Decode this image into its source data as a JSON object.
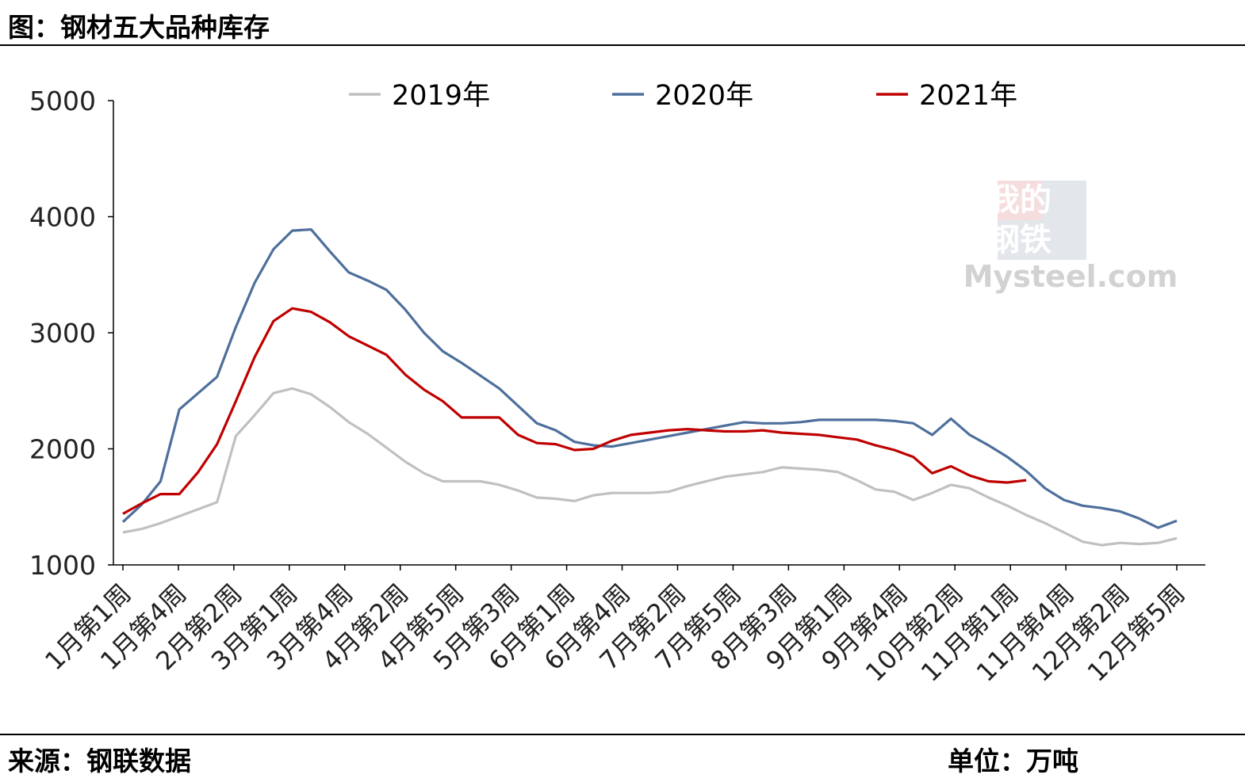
{
  "header": {
    "title": "图：钢材五大品种库存"
  },
  "footer": {
    "source": "来源：钢联数据",
    "unit": "单位：万吨"
  },
  "watermark": {
    "line1": "我的",
    "line2": "钢铁",
    "line3": "Mysteel.com"
  },
  "chart_data": {
    "type": "line",
    "title": "",
    "xlabel": "",
    "ylabel": "",
    "ylim": [
      1000,
      5000
    ],
    "yticks": [
      1000,
      2000,
      3000,
      4000,
      5000
    ],
    "legend_position": "top",
    "grid": false,
    "x_tick_labels": [
      "1月第1周",
      "1月第4周",
      "2月第2周",
      "3月第1周",
      "3月第4周",
      "4月第2周",
      "4月第5周",
      "5月第3周",
      "6月第1周",
      "6月第4周",
      "7月第2周",
      "7月第5周",
      "8月第3周",
      "9月第1周",
      "9月第4周",
      "10月第2周",
      "11月第1周",
      "11月第4周",
      "12月第2周",
      "12月第5周"
    ],
    "series": [
      {
        "name": "2019年",
        "color": "#c0c0c0",
        "values": [
          1280,
          1310,
          1360,
          1420,
          1480,
          1540,
          2110,
          2290,
          2480,
          2520,
          2470,
          2360,
          2230,
          2130,
          2010,
          1890,
          1790,
          1720,
          1720,
          1720,
          1690,
          1640,
          1580,
          1570,
          1550,
          1600,
          1620,
          1620,
          1620,
          1630,
          1680,
          1720,
          1760,
          1780,
          1800,
          1840,
          1830,
          1820,
          1800,
          1730,
          1650,
          1630,
          1560,
          1620,
          1690,
          1660,
          1580,
          1510,
          1430,
          1360,
          1280,
          1200,
          1170,
          1190,
          1180,
          1190,
          1230
        ]
      },
      {
        "name": "2020年",
        "color": "#4e6f9c",
        "values": [
          1370,
          1520,
          1720,
          2340,
          2480,
          2620,
          3050,
          3430,
          3720,
          3880,
          3890,
          3700,
          3520,
          3450,
          3370,
          3200,
          3000,
          2840,
          2740,
          2630,
          2520,
          2370,
          2220,
          2160,
          2060,
          2030,
          2020,
          2050,
          2080,
          2110,
          2140,
          2170,
          2200,
          2230,
          2220,
          2220,
          2230,
          2250,
          2250,
          2250,
          2250,
          2240,
          2220,
          2120,
          2260,
          2120,
          2030,
          1930,
          1810,
          1660,
          1560,
          1510,
          1490,
          1460,
          1400,
          1320,
          1380
        ]
      },
      {
        "name": "2021年",
        "color": "#c00000",
        "values": [
          1440,
          1530,
          1610,
          1610,
          1800,
          2040,
          2410,
          2790,
          3100,
          3210,
          3180,
          3090,
          2970,
          2890,
          2810,
          2640,
          2510,
          2410,
          2270,
          2270,
          2270,
          2120,
          2050,
          2040,
          1990,
          2000,
          2070,
          2120,
          2140,
          2160,
          2170,
          2160,
          2150,
          2150,
          2160,
          2140,
          2130,
          2120,
          2100,
          2080,
          2030,
          1990,
          1930,
          1790,
          1850,
          1770,
          1720,
          1710,
          1730
        ]
      }
    ]
  }
}
